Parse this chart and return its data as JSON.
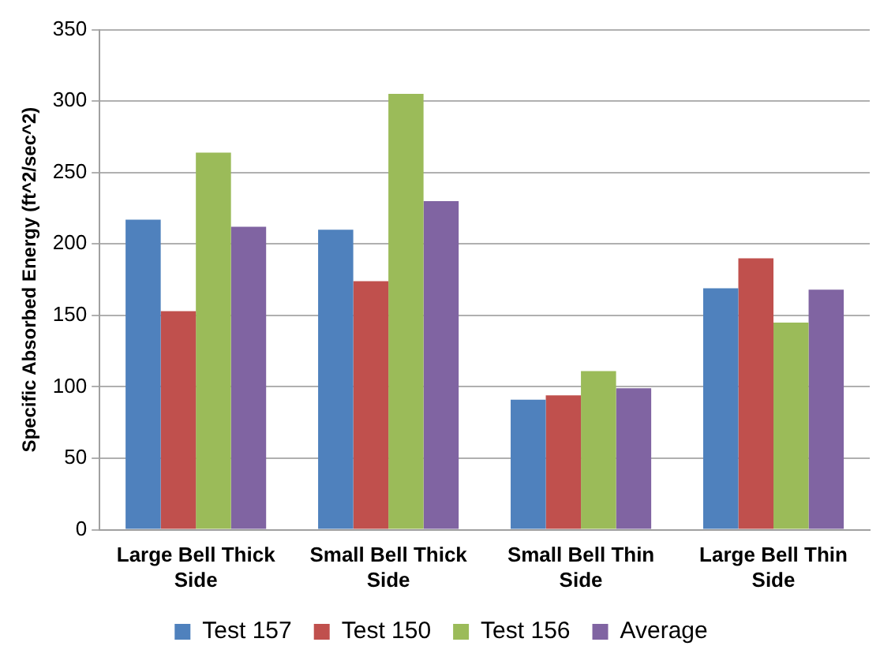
{
  "chart_data": {
    "type": "bar",
    "ylabel": "Specific Absorbed Energy (ft^2/sec^2)",
    "categories": [
      "Large Bell Thick Side",
      "Small Bell Thick Side",
      "Small Bell Thin Side",
      "Large Bell Thin Side"
    ],
    "series": [
      {
        "name": "Test 157",
        "color": "#4f81bd",
        "values": [
          217,
          210,
          91,
          169
        ]
      },
      {
        "name": "Test 150",
        "color": "#c0504d",
        "values": [
          153,
          174,
          94,
          190
        ]
      },
      {
        "name": "Test 156",
        "color": "#9bbb59",
        "values": [
          264,
          305,
          111,
          145
        ]
      },
      {
        "name": "Average",
        "color": "#8064a2",
        "values": [
          212,
          230,
          99,
          168
        ]
      }
    ],
    "ylim": [
      0,
      350
    ],
    "yticks": [
      0,
      50,
      100,
      150,
      200,
      250,
      300,
      350
    ],
    "grid": "y",
    "legend": "bottom"
  }
}
